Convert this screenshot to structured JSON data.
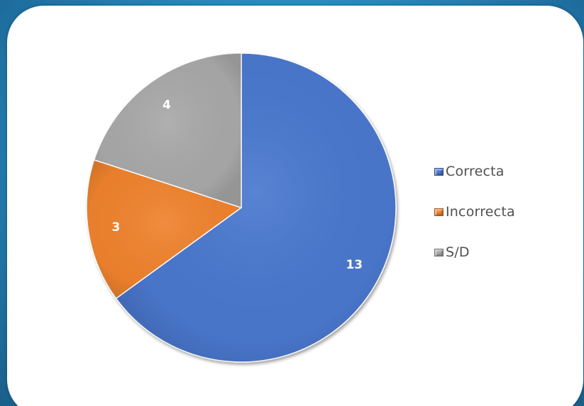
{
  "chart_data": {
    "type": "pie",
    "categories": [
      "Correcta",
      "Incorrecta",
      "S/D"
    ],
    "values": [
      13,
      3,
      4
    ],
    "colors": [
      "#4a78cf",
      "#f0832e",
      "#a9a9a9"
    ],
    "data_labels": [
      "13",
      "3",
      "4"
    ],
    "legend": [
      "Correcta",
      "Incorrecta",
      "S/D"
    ],
    "legend_position": "right",
    "start_angle": "top, clockwise"
  }
}
